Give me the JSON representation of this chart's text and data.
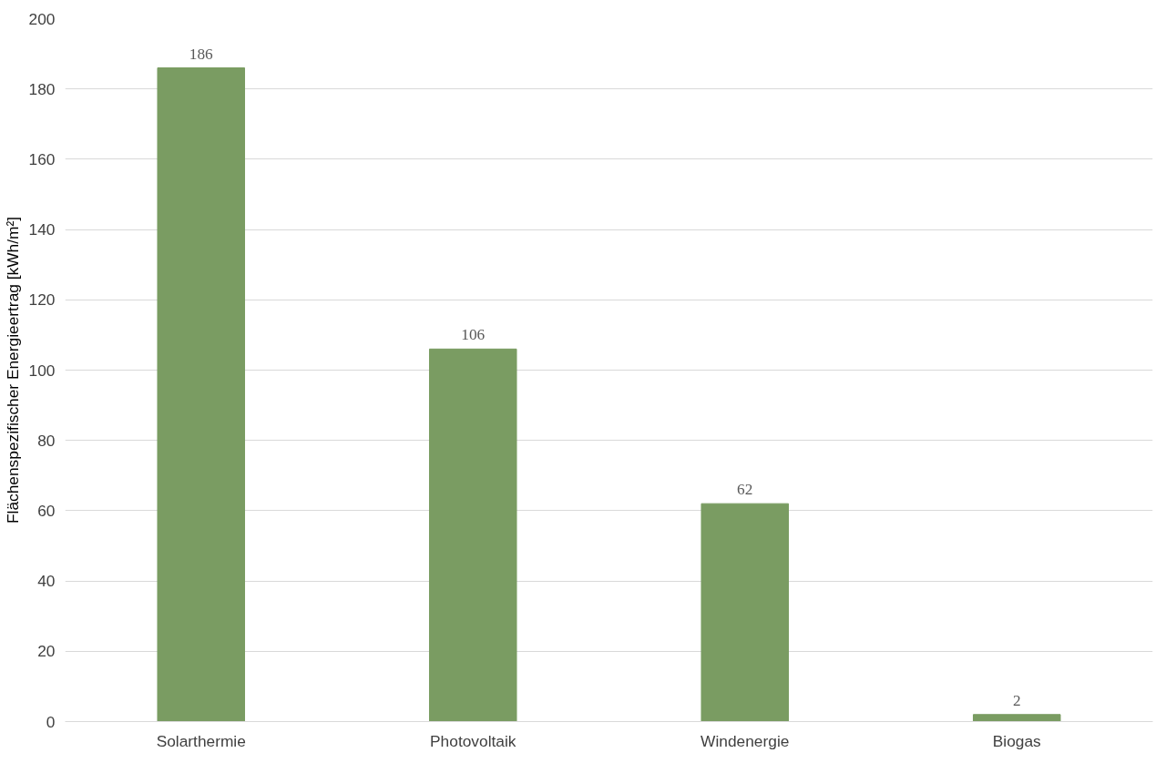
{
  "chart_data": {
    "type": "bar",
    "ylabel": "Flächenspezifischer Energieertrag [kWh/m²]",
    "categories": [
      "Solarthermie",
      "Photovoltaik",
      "Windenergie",
      "Biogas"
    ],
    "values": [
      186,
      106,
      62,
      2
    ],
    "color": "#7a9c62",
    "ylim": [
      0,
      200
    ],
    "yticks": [
      0,
      20,
      40,
      60,
      80,
      100,
      120,
      140,
      160,
      180,
      200
    ],
    "grid": "y",
    "data_labels": true
  }
}
